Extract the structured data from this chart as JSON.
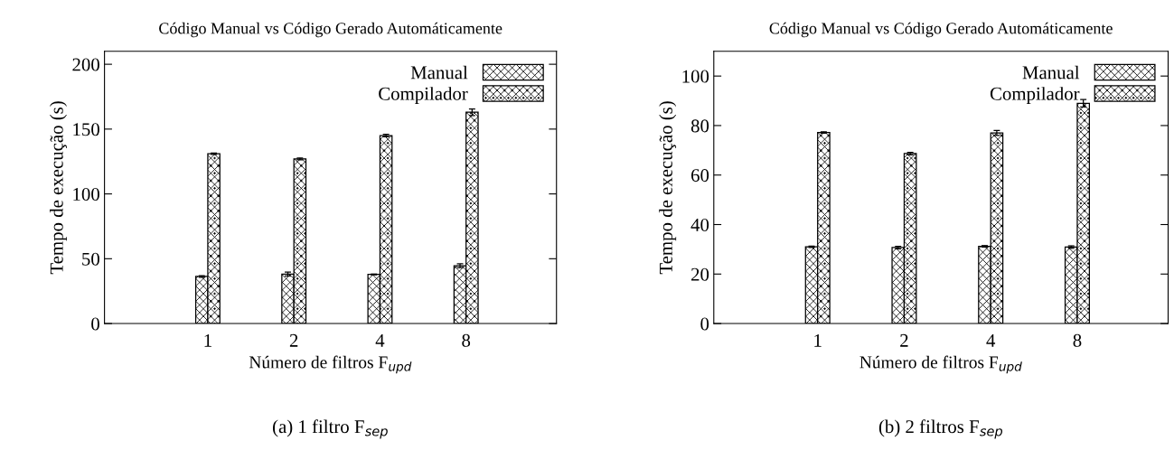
{
  "chart_data": [
    {
      "type": "bar",
      "title": "Código Manual vs Código Gerado Automáticamente",
      "xlabel": "Número de filtros F$_{upd}$",
      "ylabel": "Tempo de execução (s)",
      "categories": [
        "1",
        "2",
        "4",
        "8"
      ],
      "series": [
        {
          "name": "Manual",
          "color": "#000000",
          "values": [
            36.3,
            38.2,
            37.9,
            44.6
          ],
          "errors": [
            0.6,
            1.5,
            0.3,
            1.5
          ]
        },
        {
          "name": "Compilador",
          "color": "#000000",
          "values": [
            131,
            127,
            145,
            163
          ],
          "errors": [
            0.5,
            0.7,
            1,
            2.5
          ]
        }
      ],
      "ylim": [
        0,
        210
      ],
      "yticks": [
        0,
        50,
        100,
        150,
        200
      ],
      "legend": "top right",
      "grid": false,
      "annotations": [
        "(a) 1 filtro F$_{sep}$"
      ]
    },
    {
      "type": "bar",
      "title": "Código Manual vs Código Gerado Automáticamente",
      "xlabel": "Número de filtros F$_{upd}$",
      "ylabel": "Tempo de execução (s)",
      "categories": [
        "1",
        "2",
        "4",
        "8"
      ],
      "series": [
        {
          "name": "Manual",
          "color": "#000000",
          "values": [
            31,
            30.7,
            31.2,
            30.9
          ],
          "errors": [
            0.3,
            0.5,
            0.3,
            0.5
          ]
        },
        {
          "name": "Compilador",
          "color": "#000000",
          "values": [
            77.2,
            68.7,
            77,
            89
          ],
          "errors": [
            0.3,
            0.5,
            1,
            1.5
          ]
        }
      ],
      "ylim": [
        0,
        110
      ],
      "yticks": [
        0,
        20,
        40,
        60,
        80,
        100
      ],
      "legend": "top right",
      "grid": false,
      "annotations": [
        "(b) 2 filtros F$_{sep}$"
      ]
    }
  ]
}
